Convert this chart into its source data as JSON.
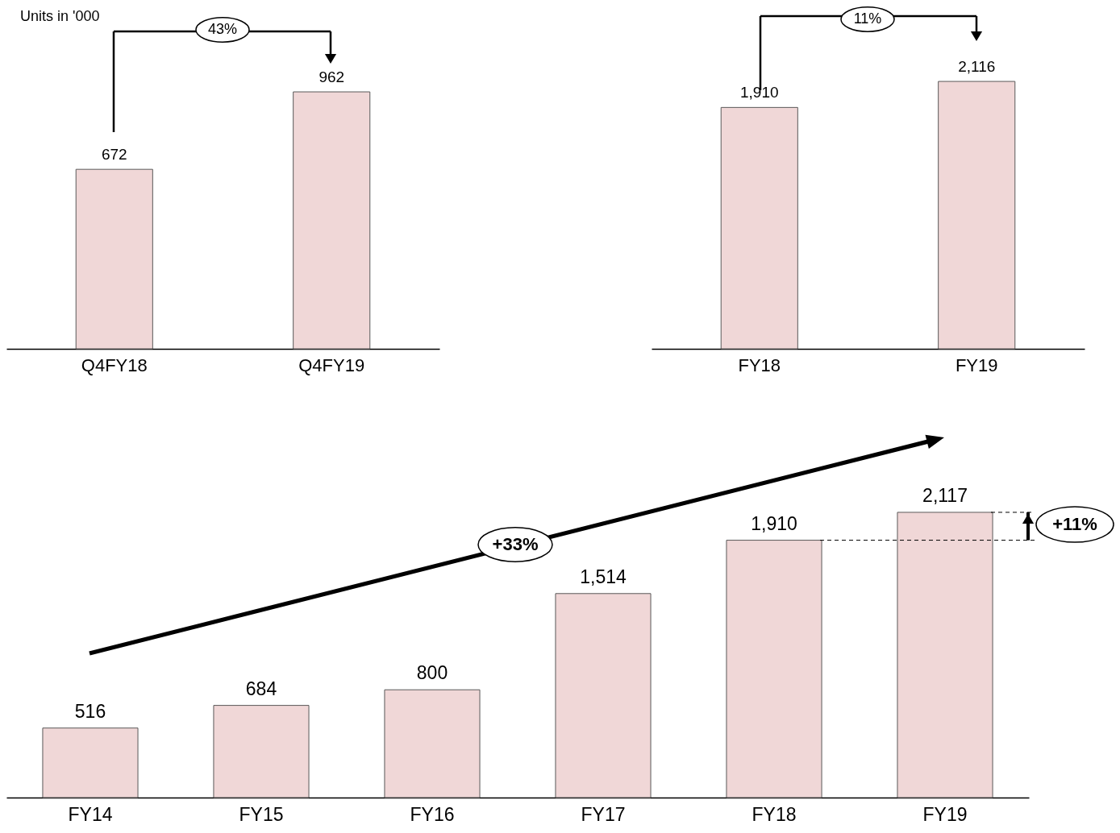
{
  "chart_data": [
    {
      "type": "bar",
      "categories": [
        "Q4FY18",
        "Q4FY19"
      ],
      "values": [
        672,
        962
      ],
      "value_labels": [
        "672",
        "962"
      ],
      "color": "#f0d7d7",
      "annotations": [
        "Units in '000",
        "43%"
      ]
    },
    {
      "type": "bar",
      "categories": [
        "FY18",
        "FY19"
      ],
      "values": [
        1910,
        2116
      ],
      "value_labels": [
        "1,910",
        "2,116"
      ],
      "color": "#f0d7d7",
      "annotations": [
        "11%"
      ]
    },
    {
      "type": "bar",
      "categories": [
        "FY14",
        "FY15",
        "FY16",
        "FY17",
        "FY18",
        "FY19"
      ],
      "values": [
        516,
        684,
        800,
        1514,
        1910,
        2117
      ],
      "value_labels": [
        "516",
        "684",
        "800",
        "1,514",
        "1,910",
        "2,117"
      ],
      "color": "#f0d7d7",
      "annotations": [
        "+33%",
        "+11%"
      ]
    }
  ]
}
